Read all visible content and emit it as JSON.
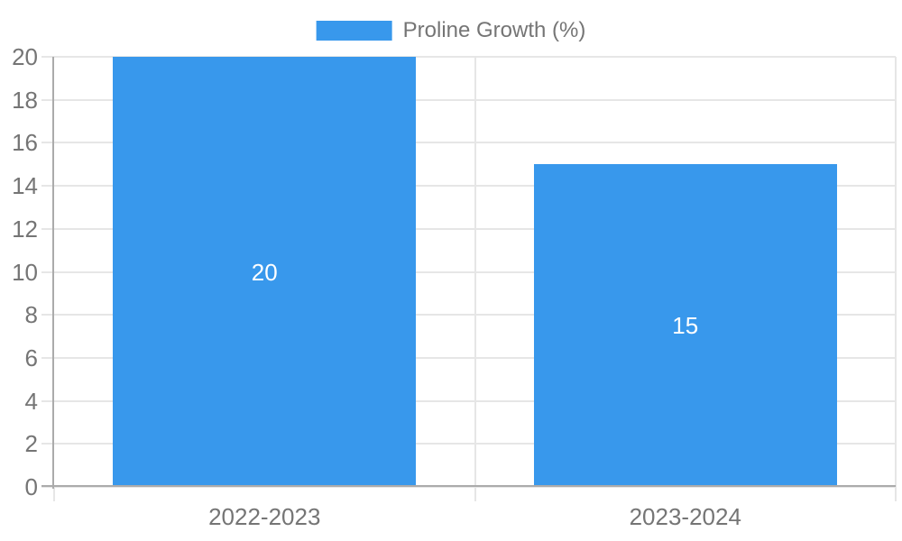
{
  "chart_data": {
    "type": "bar",
    "title": "",
    "legend": {
      "label": "Proline Growth (%)",
      "position": "top"
    },
    "categories": [
      "2022-2023",
      "2023-2024"
    ],
    "series": [
      {
        "name": "Proline Growth (%)",
        "values": [
          20,
          15
        ]
      }
    ],
    "data_labels": [
      "20",
      "15"
    ],
    "xlabel": "",
    "ylabel": "",
    "ylim": [
      0,
      20
    ],
    "yticks": [
      0,
      2,
      4,
      6,
      8,
      10,
      12,
      14,
      16,
      18,
      20
    ],
    "grid": true,
    "colors": {
      "bar": "#3898ec",
      "grid": "#e6e6e6",
      "axis": "#ababab",
      "tick_label": "#757575",
      "data_label": "#ffffff",
      "background": "#ffffff"
    }
  }
}
